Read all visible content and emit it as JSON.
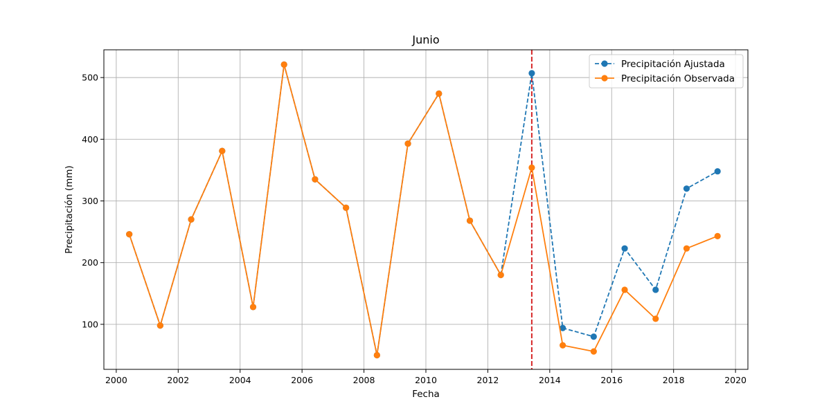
{
  "chart_data": {
    "type": "line",
    "title": "Junio",
    "xlabel": "Fecha",
    "ylabel": "Precipitación (mm)",
    "x": [
      2000.42,
      2001.42,
      2002.42,
      2003.42,
      2004.42,
      2005.42,
      2006.42,
      2007.42,
      2008.42,
      2009.42,
      2010.42,
      2011.42,
      2012.42,
      2013.42,
      2014.42,
      2015.42,
      2016.42,
      2017.42,
      2018.42,
      2019.42
    ],
    "xlim": [
      1999.6,
      2020.4
    ],
    "ylim": [
      27,
      545
    ],
    "xticks": [
      2000,
      2002,
      2004,
      2006,
      2008,
      2010,
      2012,
      2014,
      2016,
      2018,
      2020
    ],
    "xtick_labels": [
      "2000",
      "2002",
      "2004",
      "2006",
      "2008",
      "2010",
      "2012",
      "2014",
      "2016",
      "2018",
      "2020"
    ],
    "yticks": [
      100,
      200,
      300,
      400,
      500
    ],
    "ytick_labels": [
      "100",
      "200",
      "300",
      "400",
      "500"
    ],
    "grid": true,
    "legend_position": "top-right",
    "vline": {
      "x": 2013.42,
      "color": "#d62728",
      "style": "dashed"
    },
    "series": [
      {
        "name": "Precipitación Ajustada",
        "color": "#1f77b4",
        "style": "dashed",
        "marker": "circle",
        "values": [
          246,
          98,
          270,
          381,
          128,
          521,
          335,
          289,
          50,
          393,
          474,
          268,
          180,
          507,
          94,
          80,
          223,
          156,
          320,
          348
        ]
      },
      {
        "name": "Precipitación Observada",
        "color": "#ff7f0e",
        "style": "solid",
        "marker": "circle",
        "values": [
          246,
          98,
          270,
          381,
          128,
          521,
          335,
          289,
          50,
          393,
          474,
          268,
          180,
          354,
          66,
          56,
          156,
          109,
          223,
          243
        ]
      }
    ]
  }
}
